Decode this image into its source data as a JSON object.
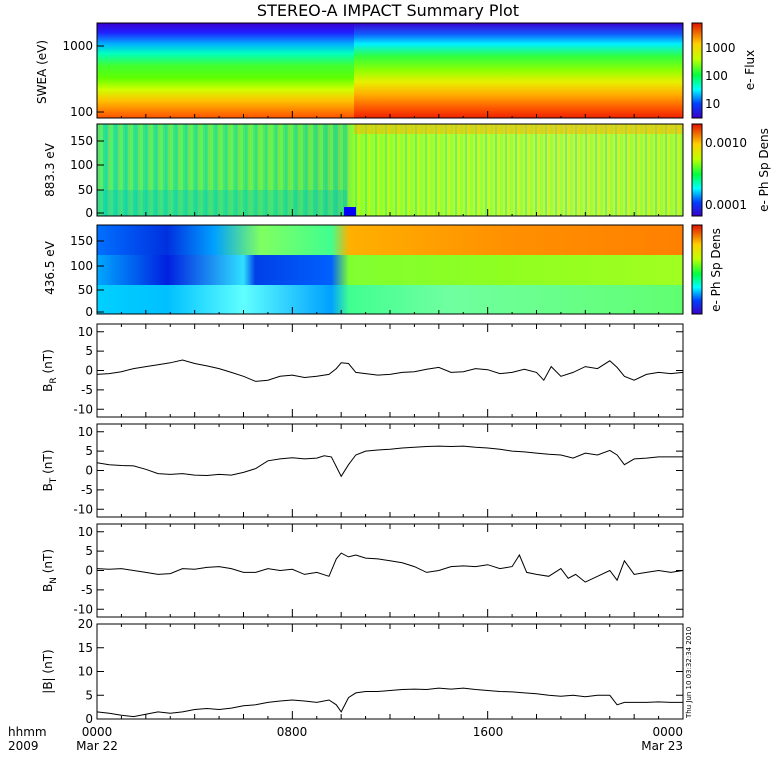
{
  "chart_data": [
    {
      "type": "heatmap",
      "title": "STEREO-A IMPACT Summary Plot",
      "ylabel": "SWEA (eV)",
      "ylog": true,
      "yticks": [
        "1000",
        "100"
      ],
      "colorbar_label": "e- Flux",
      "colorbar_ticks": [
        "1000",
        "100",
        "10"
      ],
      "colormap": "rainbow",
      "x_hours": [
        0,
        3,
        6,
        9,
        10,
        10.5,
        12,
        15,
        18,
        21,
        24
      ],
      "description_levels": "higher flux at low energies; step increase near 10:15"
    },
    {
      "type": "heatmap",
      "ylabel": "883.3 eV",
      "ylim": [
        0,
        180
      ],
      "yticks": [
        "150",
        "100",
        "50",
        "0"
      ],
      "colorbar_label": "e- Ph Sp Dens",
      "colorbar_ticks": [
        "0.0010",
        "0.0001"
      ],
      "colormap": "rainbow"
    },
    {
      "type": "heatmap",
      "ylabel": "436.5 eV",
      "ylim": [
        0,
        180
      ],
      "yticks": [
        "150",
        "100",
        "50",
        "0"
      ],
      "colorbar_label": "e- Ph Sp Dens",
      "colorbar_ticks": [],
      "colormap": "rainbow"
    },
    {
      "type": "line",
      "ylabel": "B",
      "ylabel_sub": "R",
      "ylabel_unit": "(nT)",
      "ylim": [
        -12,
        12
      ],
      "yticks": [
        "10",
        "5",
        "0",
        "-5",
        "-10"
      ],
      "x_hours": [
        0,
        0.5,
        1,
        1.5,
        2,
        2.5,
        3,
        3.5,
        4,
        4.5,
        5,
        5.5,
        6,
        6.5,
        7,
        7.5,
        8,
        8.5,
        9,
        9.5,
        9.8,
        10,
        10.3,
        10.6,
        11,
        11.5,
        12,
        12.5,
        13,
        13.5,
        14,
        14.5,
        15,
        15.5,
        16,
        16.5,
        17,
        17.5,
        18,
        18.3,
        18.6,
        19,
        19.5,
        20,
        20.5,
        21,
        21.3,
        21.6,
        22,
        22.5,
        23,
        23.5,
        24
      ],
      "values": [
        -1,
        -0.8,
        -0.3,
        0.5,
        1,
        1.5,
        2,
        2.7,
        1.8,
        1.2,
        0.5,
        -0.5,
        -1.5,
        -2.8,
        -2.5,
        -1.5,
        -1.2,
        -1.8,
        -1.5,
        -1,
        0.5,
        2,
        1.8,
        -0.5,
        -0.8,
        -1.2,
        -1,
        -0.5,
        -0.3,
        0.3,
        0.8,
        -0.5,
        -0.3,
        0.5,
        0.2,
        -0.8,
        -0.5,
        0.3,
        -0.5,
        -2.5,
        1,
        -1.5,
        -0.5,
        1,
        0.5,
        2.5,
        0.8,
        -1.5,
        -2.5,
        -1,
        -0.5,
        -0.8,
        -0.5
      ]
    },
    {
      "type": "line",
      "ylabel": "B",
      "ylabel_sub": "T",
      "ylabel_unit": "(nT)",
      "ylim": [
        -12,
        12
      ],
      "yticks": [
        "10",
        "5",
        "0",
        "-5",
        "-10"
      ],
      "x_hours": [
        0,
        0.5,
        1,
        1.5,
        2,
        2.5,
        3,
        3.5,
        4,
        4.5,
        5,
        5.5,
        6,
        6.5,
        7,
        7.5,
        8,
        8.5,
        9,
        9.3,
        9.6,
        9.8,
        10,
        10.3,
        10.6,
        11,
        11.5,
        12,
        12.5,
        13,
        13.5,
        14,
        14.5,
        15,
        15.5,
        16,
        16.5,
        17,
        17.5,
        18,
        18.5,
        19,
        19.5,
        20,
        20.5,
        21,
        21.3,
        21.6,
        22,
        22.5,
        23,
        23.5,
        24
      ],
      "values": [
        2,
        1.5,
        1.3,
        1.2,
        0.3,
        -0.8,
        -1,
        -0.8,
        -1.2,
        -1.3,
        -1,
        -1.2,
        -0.5,
        0.5,
        2.5,
        3,
        3.3,
        3,
        3.2,
        3.8,
        3.5,
        1,
        -1.5,
        1.5,
        4,
        5,
        5.3,
        5.5,
        5.8,
        6,
        6.2,
        6.3,
        6.2,
        6.3,
        6,
        5.8,
        5.5,
        5,
        4.8,
        4.5,
        4.2,
        4,
        3.2,
        4.5,
        4,
        5.2,
        4,
        1.5,
        3,
        3.2,
        3.5,
        3.5,
        3.5
      ]
    },
    {
      "type": "line",
      "ylabel": "B",
      "ylabel_sub": "N",
      "ylabel_unit": "(nT)",
      "ylim": [
        -12,
        12
      ],
      "yticks": [
        "10",
        "5",
        "0",
        "-5",
        "-10"
      ],
      "x_hours": [
        0,
        0.5,
        1,
        1.5,
        2,
        2.5,
        3,
        3.5,
        4,
        4.5,
        5,
        5.5,
        6,
        6.5,
        7,
        7.5,
        8,
        8.5,
        9,
        9.5,
        9.8,
        10,
        10.3,
        10.6,
        11,
        11.5,
        12,
        12.5,
        13,
        13.5,
        14,
        14.5,
        15,
        15.5,
        16,
        16.5,
        17,
        17.3,
        17.6,
        18,
        18.5,
        19,
        19.3,
        19.6,
        20,
        20.5,
        21,
        21.3,
        21.6,
        22,
        22.5,
        23,
        23.5,
        24
      ],
      "values": [
        0.5,
        0.3,
        0.5,
        0,
        -0.5,
        -1,
        -0.8,
        0.5,
        0.3,
        0.8,
        1,
        0.5,
        -0.5,
        -0.5,
        0.5,
        0,
        0.3,
        -1,
        -0.5,
        -1.5,
        3,
        4.5,
        3.5,
        4,
        3.2,
        3,
        2.5,
        2,
        1,
        -0.5,
        0,
        1,
        1.2,
        1,
        1.5,
        0.5,
        1,
        4,
        -0.5,
        -1,
        -1.5,
        0.5,
        -2,
        -1,
        -3,
        -1.5,
        0,
        -2.5,
        2.5,
        -1,
        -0.5,
        0,
        -0.5,
        0
      ]
    },
    {
      "type": "line",
      "ylabel": "|B|",
      "ylabel_unit": "(nT)",
      "ylim": [
        0,
        20
      ],
      "yticks": [
        "20",
        "15",
        "10",
        "5",
        "0"
      ],
      "x_hours": [
        0,
        0.5,
        1,
        1.5,
        2,
        2.5,
        3,
        3.5,
        4,
        4.5,
        5,
        5.5,
        6,
        6.5,
        7,
        7.5,
        8,
        8.5,
        9,
        9.5,
        9.8,
        10,
        10.3,
        10.6,
        11,
        11.5,
        12,
        12.5,
        13,
        13.5,
        14,
        14.5,
        15,
        15.5,
        16,
        16.5,
        17,
        17.5,
        18,
        18.5,
        19,
        19.5,
        20,
        20.5,
        21,
        21.3,
        21.6,
        22,
        22.5,
        23,
        23.5,
        24
      ],
      "values": [
        1.5,
        1.2,
        0.8,
        0.5,
        1,
        1.5,
        1.2,
        1.5,
        2,
        2.2,
        2,
        2.3,
        2.8,
        3,
        3.5,
        3.8,
        4,
        3.8,
        3.5,
        4,
        3,
        1.5,
        4.5,
        5.5,
        5.8,
        5.8,
        6,
        6.2,
        6.3,
        6.2,
        6.5,
        6.3,
        6.5,
        6.2,
        6,
        5.8,
        5.7,
        5.5,
        5.3,
        5,
        4.8,
        5,
        4.7,
        5,
        5,
        3,
        3.5,
        3.5,
        3.5,
        3.6,
        3.5,
        3.5
      ]
    }
  ],
  "x_axis": {
    "ticks": [
      "0000",
      "0800",
      "1600",
      "0000"
    ],
    "dates": [
      "Mar 22",
      "Mar 23"
    ],
    "corner_labels": [
      "hhmm",
      "2009"
    ]
  },
  "timestamp": "Thu Jun 10 03:32:34 2010"
}
